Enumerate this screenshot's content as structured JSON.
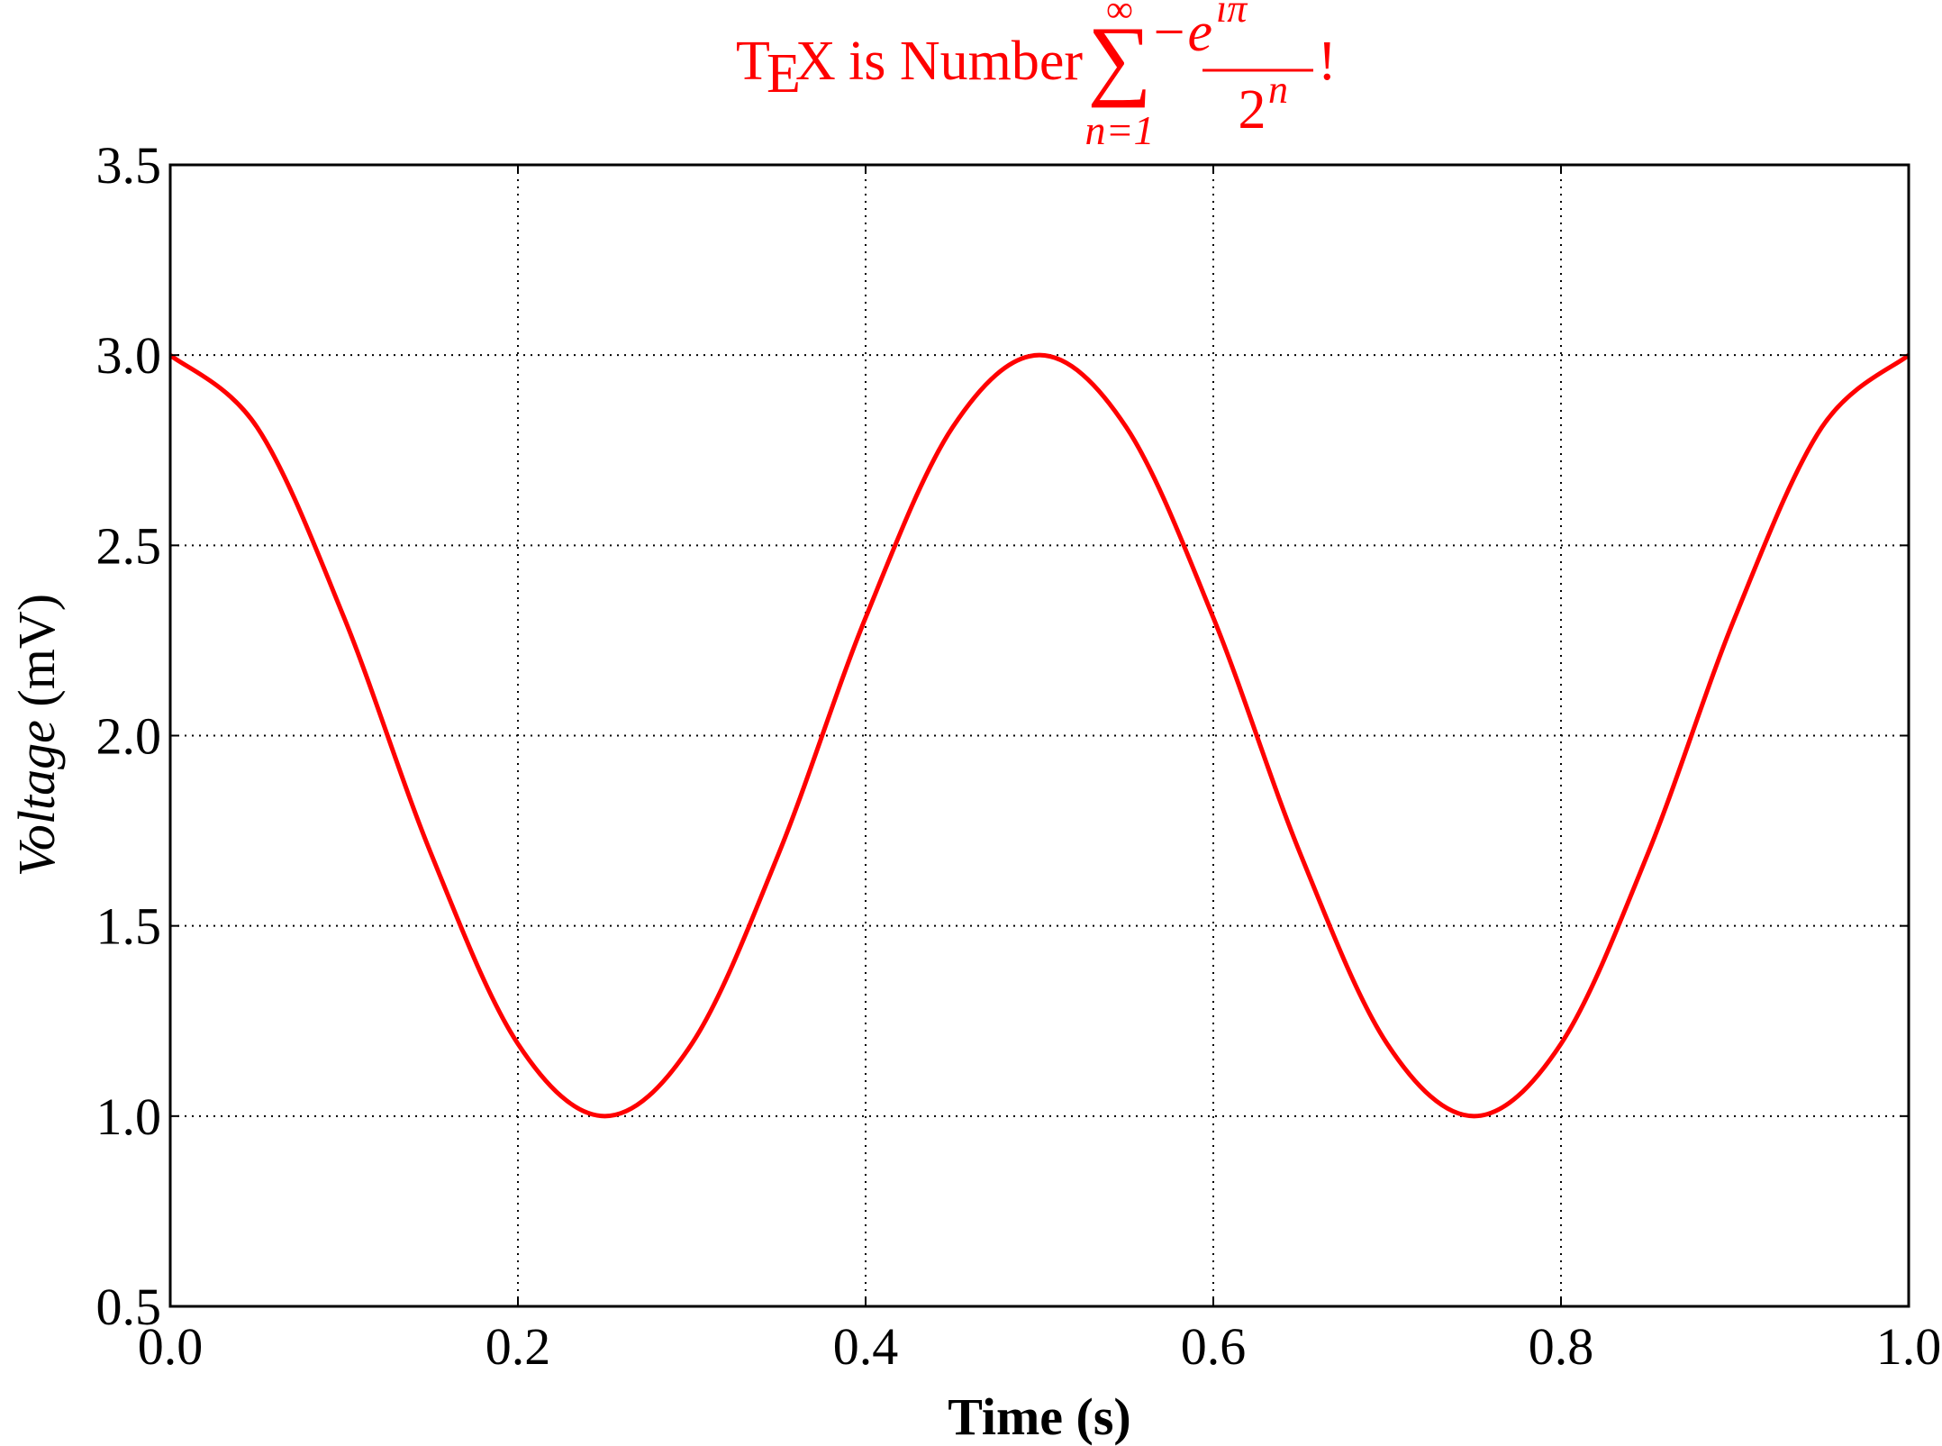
{
  "chart_data": {
    "type": "line",
    "title": {
      "tex_T": "T",
      "tex_E": "E",
      "tex_X": "X",
      "text": "is Number",
      "sum_symbol": "∑",
      "sum_upper": "∞",
      "sum_lower": "n=1",
      "numerator": "−e",
      "numerator_exp": "ıπ",
      "denominator": "2",
      "denominator_exp": "n",
      "suffix": "!",
      "color": "#ff0000"
    },
    "xlabel": "Time (s)",
    "ylabel": {
      "italic_part": "Voltage",
      "rest": " (mV)"
    },
    "xlim": [
      0.0,
      1.0
    ],
    "ylim": [
      0.5,
      3.5
    ],
    "xticks": [
      0.0,
      0.2,
      0.4,
      0.6,
      0.8,
      1.0
    ],
    "xtick_labels": [
      "0.0",
      "0.2",
      "0.4",
      "0.6",
      "0.8",
      "1.0"
    ],
    "yticks": [
      0.5,
      1.0,
      1.5,
      2.0,
      2.5,
      3.0,
      3.5
    ],
    "ytick_labels": [
      "0.5",
      "1.0",
      "1.5",
      "2.0",
      "2.5",
      "3.0",
      "3.5"
    ],
    "grid": true,
    "series": [
      {
        "color": "#ff0000",
        "x": [
          0.0,
          0.05,
          0.1,
          0.15,
          0.2,
          0.25,
          0.3,
          0.35,
          0.4,
          0.45,
          0.5,
          0.55,
          0.6,
          0.65,
          0.7,
          0.75,
          0.8,
          0.85,
          0.9,
          0.95,
          1.0
        ],
        "y": [
          3.0,
          2.81,
          2.31,
          1.69,
          1.19,
          1.0,
          1.19,
          1.69,
          2.31,
          2.81,
          3.0,
          2.81,
          2.31,
          1.69,
          1.19,
          1.0,
          1.19,
          1.69,
          2.31,
          2.81,
          3.0
        ]
      }
    ]
  }
}
